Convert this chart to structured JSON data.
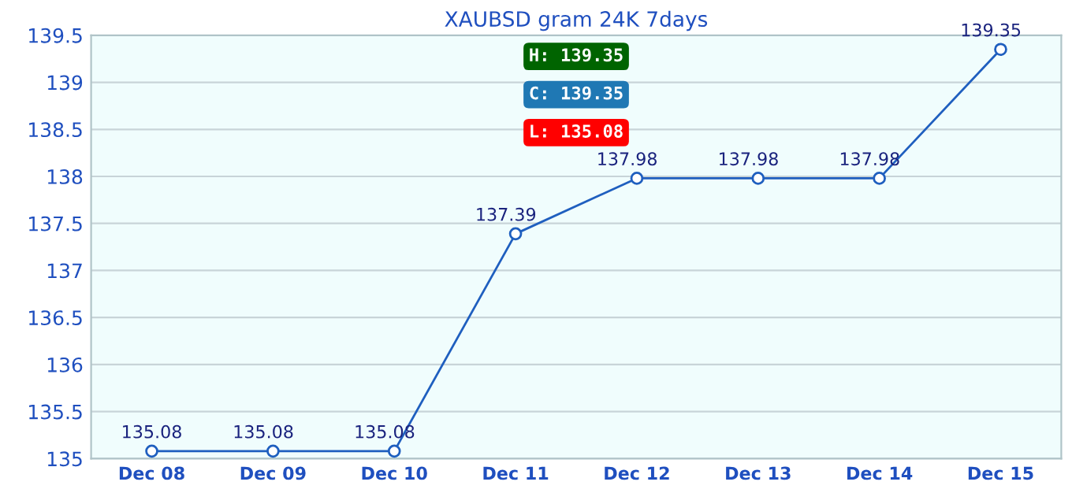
{
  "chart_data": {
    "type": "line",
    "title": "XAUBSD gram 24K 7days",
    "categories": [
      "Dec 08",
      "Dec 09",
      "Dec 10",
      "Dec 11",
      "Dec 12",
      "Dec 13",
      "Dec 14",
      "Dec 15"
    ],
    "series": [
      {
        "color": "#1f5fbf",
        "values": [
          135.08,
          135.08,
          135.08,
          137.39,
          137.98,
          137.98,
          137.98,
          139.35
        ]
      }
    ],
    "ylim": [
      135,
      139.5
    ],
    "yticks": [
      135,
      135.5,
      136,
      136.5,
      137,
      137.5,
      138,
      138.5,
      139,
      139.5
    ],
    "grid": "y",
    "marker": "circle",
    "data_labels": true,
    "annotations": [
      "H: 139.35",
      "C: 139.35",
      "L: 135.08"
    ]
  }
}
